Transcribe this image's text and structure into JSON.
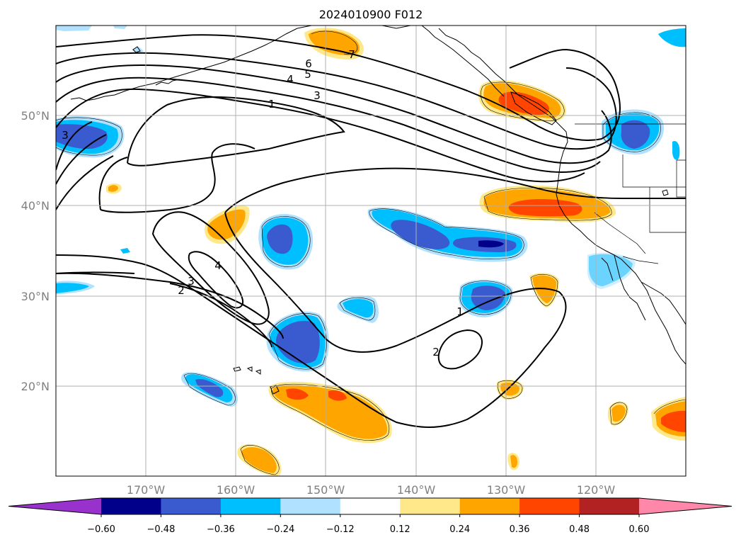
{
  "title": "2024010900 F012",
  "lat_labels": [
    "50°N",
    "40°N",
    "30°N",
    "20°N"
  ],
  "lon_labels": [
    "170°W",
    "160°W",
    "150°W",
    "140°W",
    "130°W",
    "120°W"
  ],
  "colorbar": {
    "tick_labels": [
      "−0.60",
      "−0.48",
      "−0.36",
      "−0.24",
      "−0.12",
      "0.12",
      "0.24",
      "0.36",
      "0.48",
      "0.60"
    ],
    "colors": [
      "#9932cc",
      "#00008b",
      "#3a5bcf",
      "#00bfff",
      "#b0e2ff",
      "#ffffff",
      "#ffe88a",
      "#ffa500",
      "#ff4500",
      "#b22222",
      "#ff88aa"
    ]
  },
  "contour_labels": [
    "7",
    "6",
    "5",
    "4",
    "3",
    "1",
    "4",
    "3",
    "2",
    "1",
    "2",
    "3"
  ],
  "colors": {
    "outline": "#000000",
    "grid": "#b0b0b0",
    "lightblue": "#b0e2ff",
    "blue": "#00bfff",
    "midblue": "#3a5bcf",
    "navy": "#00008b",
    "yellow": "#ffe88a",
    "orange": "#ffa500",
    "red": "#ff4500"
  }
}
